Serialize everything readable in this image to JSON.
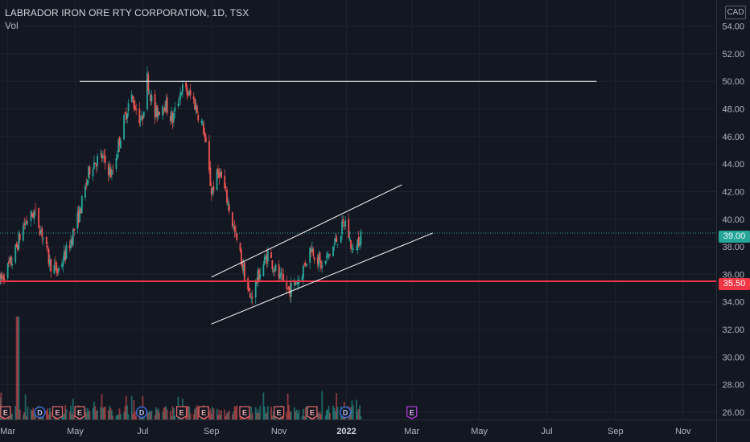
{
  "header": {
    "title": "LABRADOR IRON ORE RTY CORPORATION, 1D, TSX",
    "volume_label": "Vol",
    "currency": "CAD"
  },
  "price_tags": {
    "current": "39.00",
    "support": "35.50"
  },
  "colors": {
    "background": "#131722",
    "up": "#26a69a",
    "down": "#ef5350",
    "support_line": "#f23645",
    "trend_line": "#ffffff",
    "earnings_badge": "#e06666",
    "dividend_badge": "#3b6dd8",
    "future_event_badge": "#b03ad3"
  },
  "chart_data": {
    "type": "candlestick",
    "title": "LABRADOR IRON ORE RTY CORPORATION, 1D, TSX",
    "y_axis": {
      "ticks": [
        "26.00",
        "28.00",
        "30.00",
        "32.00",
        "34.00",
        "36.00",
        "38.00",
        "40.00",
        "42.00",
        "44.00",
        "46.00",
        "48.00",
        "50.00",
        "52.00",
        "54.00"
      ],
      "range": [
        25.3,
        55.9
      ],
      "unit": "CAD"
    },
    "x_axis": {
      "ticks": [
        "Mar",
        "May",
        "Jul",
        "Sep",
        "Nov",
        "2022",
        "Mar",
        "May",
        "Jul",
        "Sep",
        "Nov"
      ],
      "range": [
        "2021-02-22",
        "2022-12-01"
      ]
    },
    "price_path": [
      [
        "2021-02-22",
        35.5
      ],
      [
        "2021-03-05",
        37.0
      ],
      [
        "2021-03-15",
        39.5
      ],
      [
        "2021-03-25",
        40.5
      ],
      [
        "2021-04-01",
        39.0
      ],
      [
        "2021-04-08",
        36.8
      ],
      [
        "2021-04-15",
        36.2
      ],
      [
        "2021-04-25",
        38.0
      ],
      [
        "2021-05-05",
        40.5
      ],
      [
        "2021-05-15",
        44.0
      ],
      [
        "2021-05-25",
        44.5
      ],
      [
        "2021-06-03",
        43.2
      ],
      [
        "2021-06-12",
        46.5
      ],
      [
        "2021-06-20",
        49.0
      ],
      [
        "2021-06-30",
        47.0
      ],
      [
        "2021-07-05",
        50.2
      ],
      [
        "2021-07-12",
        47.5
      ],
      [
        "2021-07-20",
        48.5
      ],
      [
        "2021-07-28",
        47.2
      ],
      [
        "2021-08-05",
        49.5
      ],
      [
        "2021-08-15",
        48.8
      ],
      [
        "2021-08-25",
        46.5
      ],
      [
        "2021-09-01",
        42.0
      ],
      [
        "2021-09-08",
        43.5
      ],
      [
        "2021-09-15",
        41.5
      ],
      [
        "2021-09-22",
        39.0
      ],
      [
        "2021-10-01",
        36.0
      ],
      [
        "2021-10-06",
        34.2
      ],
      [
        "2021-10-14",
        36.0
      ],
      [
        "2021-10-22",
        37.5
      ],
      [
        "2021-11-01",
        35.8
      ],
      [
        "2021-11-10",
        34.8
      ],
      [
        "2021-11-20",
        35.8
      ],
      [
        "2021-11-30",
        38.0
      ],
      [
        "2021-12-10",
        36.5
      ],
      [
        "2021-12-20",
        38.0
      ],
      [
        "2021-12-31",
        39.8
      ],
      [
        "2022-01-07",
        37.5
      ],
      [
        "2022-01-14",
        39.0
      ]
    ],
    "volume": {
      "spike": [
        "2021-03-10",
        "tallest bar"
      ],
      "note": "daily volume bars along bottom, coloured by candle direction"
    },
    "drawings": [
      {
        "type": "horizontal",
        "from": "2021-05-05",
        "to": "2022-08-15",
        "price": 50.0,
        "color": "#ffffff"
      },
      {
        "type": "horizontal",
        "from": "2021-02-22",
        "to": "2022-12-01",
        "price": 35.5,
        "color": "#f23645"
      },
      {
        "type": "trend",
        "points": [
          [
            "2021-09-01",
            35.8
          ],
          [
            "2022-02-20",
            42.5
          ]
        ],
        "color": "#ffffff"
      },
      {
        "type": "trend",
        "points": [
          [
            "2021-09-01",
            32.4
          ],
          [
            "2022-03-20",
            39.0
          ]
        ],
        "color": "#ffffff"
      }
    ],
    "price_lines": [
      {
        "price": 39.0,
        "style": "dotted",
        "color": "#26a69a"
      }
    ],
    "events": [
      {
        "date": "2021-02-27",
        "letter": "E"
      },
      {
        "date": "2021-03-30",
        "letter": "D"
      },
      {
        "date": "2021-04-15",
        "letter": "E"
      },
      {
        "date": "2021-05-05",
        "letter": "E"
      },
      {
        "date": "2021-06-30",
        "letter": "D"
      },
      {
        "date": "2021-08-05",
        "letter": "E"
      },
      {
        "date": "2021-08-25",
        "letter": "E"
      },
      {
        "date": "2021-10-01",
        "letter": "E"
      },
      {
        "date": "2021-11-01",
        "letter": "E"
      },
      {
        "date": "2021-12-01",
        "letter": "E"
      },
      {
        "date": "2021-12-31",
        "letter": "D"
      },
      {
        "date": "2022-03-01",
        "letter": "E"
      }
    ]
  }
}
